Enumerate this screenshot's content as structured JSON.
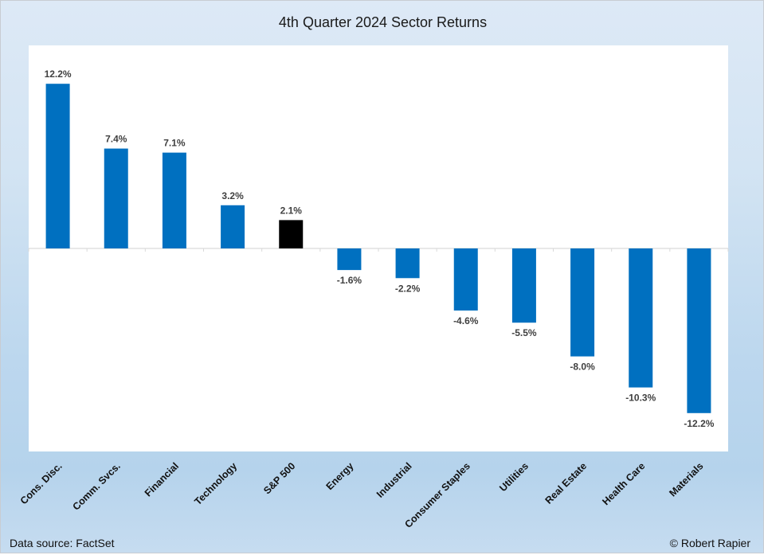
{
  "chart_data": {
    "type": "bar",
    "title": "4th Quarter 2024 Sector Returns",
    "xlabel": "",
    "ylabel": "",
    "ylim": [
      -15,
      15
    ],
    "grid": false,
    "categories": [
      "Cons. Disc.",
      "Comm. Svcs.",
      "Financial",
      "Technology",
      "S&P 500",
      "Energy",
      "Industrial",
      "Consumer Staples",
      "Utilities",
      "Real Estate",
      "Health Care",
      "Materials"
    ],
    "values": [
      12.2,
      7.4,
      7.1,
      3.2,
      2.1,
      -1.6,
      -2.2,
      -4.6,
      -5.5,
      -8.0,
      -10.3,
      -12.2
    ],
    "data_labels": [
      "12.2%",
      "7.4%",
      "7.1%",
      "3.2%",
      "2.1%",
      "-1.6%",
      "-2.2%",
      "-4.6%",
      "-5.5%",
      "-8.0%",
      "-10.3%",
      "-12.2%"
    ],
    "highlight_category": "S&P 500",
    "colors": {
      "bar": "#0070c0",
      "highlight": "#000000",
      "label": "#404040"
    }
  },
  "footer": {
    "source": "Data source: FactSet",
    "credit": "© Robert Rapier"
  }
}
